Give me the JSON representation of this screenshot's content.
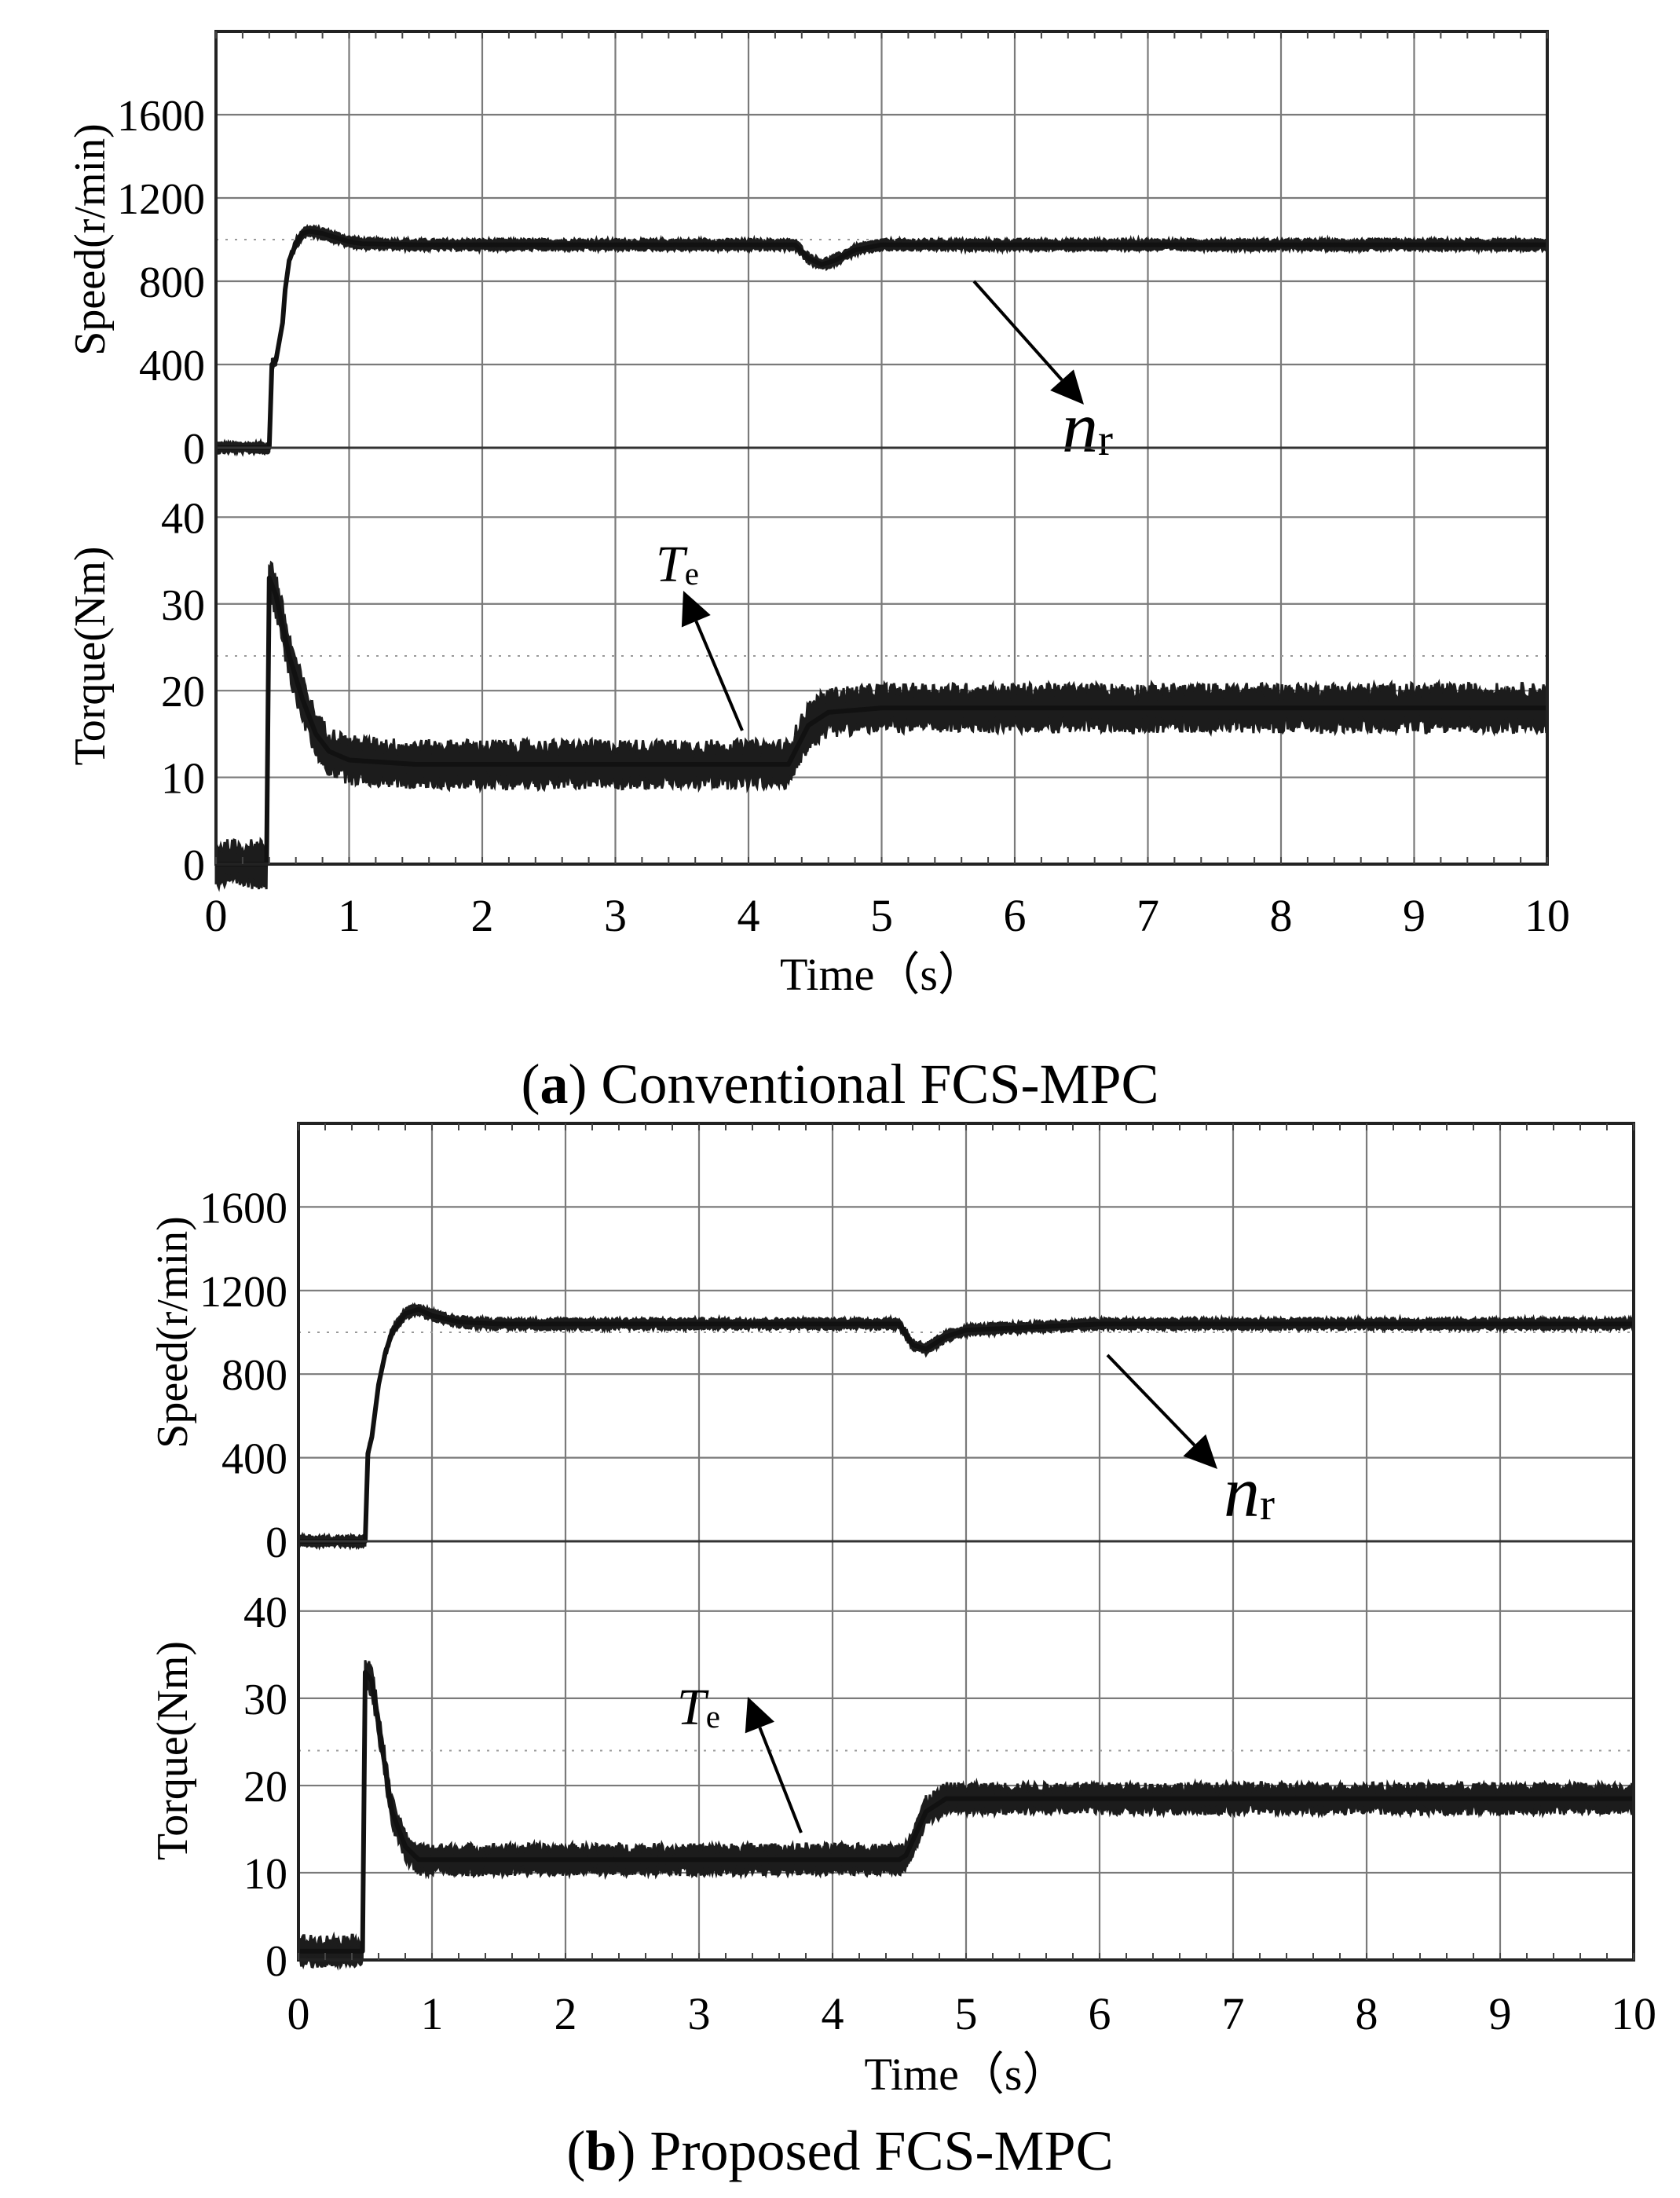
{
  "chart_data": [
    {
      "type": "line",
      "panel": "a",
      "caption": {
        "letter": "a",
        "text": "Conventional FCS-MPC"
      },
      "xlabel": "Time（s）",
      "x_ticks": [
        "0",
        "1",
        "2",
        "3",
        "4",
        "5",
        "6",
        "7",
        "8",
        "9",
        "10"
      ],
      "xlim": [
        0,
        10
      ],
      "subplots": [
        {
          "ylabel": "Speed(r/min)",
          "ylim": [
            0,
            2000
          ],
          "y_ticks": [
            "0",
            "400",
            "800",
            "1200",
            "1600"
          ],
          "y_tick_values": [
            0,
            400,
            800,
            1200,
            1600
          ],
          "series": [
            {
              "name": "nr",
              "x": [
                0,
                0.4,
                0.42,
                0.45,
                0.5,
                0.52,
                0.55,
                0.6,
                0.65,
                0.7,
                0.8,
                0.9,
                1.0,
                1.1,
                1.5,
                2,
                3,
                4,
                4.35,
                4.45,
                4.55,
                4.65,
                4.8,
                5,
                6,
                7,
                8,
                9,
                10
              ],
              "y": [
                0,
                0,
                400,
                420,
                600,
                760,
                900,
                980,
                1030,
                1040,
                1030,
                1010,
                990,
                980,
                975,
                975,
                975,
                975,
                975,
                910,
                880,
                900,
                950,
                975,
                975,
                975,
                975,
                975,
                975
              ],
              "band": 20
            }
          ],
          "annotation": {
            "label": "n",
            "sub": "r"
          }
        },
        {
          "ylabel": "Torque(Nm)",
          "ylim": [
            0,
            48
          ],
          "y_ticks": [
            "0",
            "10",
            "20",
            "30",
            "40"
          ],
          "y_tick_values": [
            0,
            10,
            20,
            30,
            40
          ],
          "series": [
            {
              "name": "Te",
              "x": [
                0,
                0.38,
                0.4,
                0.45,
                0.55,
                0.65,
                0.75,
                0.85,
                1.0,
                1.5,
                2,
                3,
                4,
                4.3,
                4.45,
                4.6,
                5,
                6,
                7,
                8,
                9,
                10
              ],
              "y": [
                0,
                0,
                33,
                31,
                24,
                19,
                15,
                13,
                12,
                11.5,
                11.5,
                11.5,
                11.5,
                11.5,
                16,
                17.5,
                18,
                18,
                18,
                18,
                18,
                18
              ],
              "band": 2
            }
          ],
          "annotation": {
            "label": "T",
            "sub": "e"
          }
        }
      ]
    },
    {
      "type": "line",
      "panel": "b",
      "caption": {
        "letter": "b",
        "text": "Proposed FCS-MPC"
      },
      "xlabel": "Time（s）",
      "x_ticks": [
        "0",
        "1",
        "2",
        "3",
        "4",
        "5",
        "6",
        "7",
        "8",
        "9",
        "10"
      ],
      "xlim": [
        0,
        10
      ],
      "subplots": [
        {
          "ylabel": "Speed(r/min)",
          "ylim": [
            0,
            2000
          ],
          "y_ticks": [
            "0",
            "400",
            "800",
            "1200",
            "1600"
          ],
          "y_tick_values": [
            0,
            400,
            800,
            1200,
            1600
          ],
          "series": [
            {
              "name": "nr",
              "x": [
                0,
                0.5,
                0.52,
                0.55,
                0.6,
                0.65,
                0.7,
                0.8,
                0.9,
                1.0,
                1.2,
                1.5,
                2,
                3,
                4,
                4.5,
                4.6,
                4.7,
                4.85,
                5,
                6,
                7,
                8,
                9,
                10
              ],
              "y": [
                0,
                0,
                420,
                500,
                750,
                900,
                1000,
                1090,
                1110,
                1080,
                1050,
                1040,
                1040,
                1040,
                1040,
                1040,
                940,
                920,
                980,
                1010,
                1040,
                1040,
                1040,
                1040,
                1040
              ],
              "band": 20
            }
          ],
          "annotation": {
            "label": "n",
            "sub": "r"
          }
        },
        {
          "ylabel": "Torque(Nm)",
          "ylim": [
            0,
            48
          ],
          "y_ticks": [
            "0",
            "10",
            "20",
            "30",
            "40"
          ],
          "y_tick_values": [
            0,
            10,
            20,
            30,
            40
          ],
          "series": [
            {
              "name": "Te",
              "x": [
                0,
                0.48,
                0.5,
                0.55,
                0.62,
                0.7,
                0.8,
                0.9,
                1.0,
                1.5,
                2,
                3,
                4,
                4.5,
                4.55,
                4.7,
                4.85,
                5,
                6,
                7,
                8,
                9,
                10
              ],
              "y": [
                1,
                1,
                33,
                32,
                25,
                17,
                13,
                11.5,
                11.5,
                11.5,
                11.5,
                11.5,
                11.5,
                11.5,
                12,
                17,
                18.5,
                18.5,
                18.5,
                18.5,
                18.5,
                18.5,
                18.5
              ],
              "band": 1.3
            }
          ],
          "annotation": {
            "label": "T",
            "sub": "e"
          }
        }
      ]
    }
  ]
}
